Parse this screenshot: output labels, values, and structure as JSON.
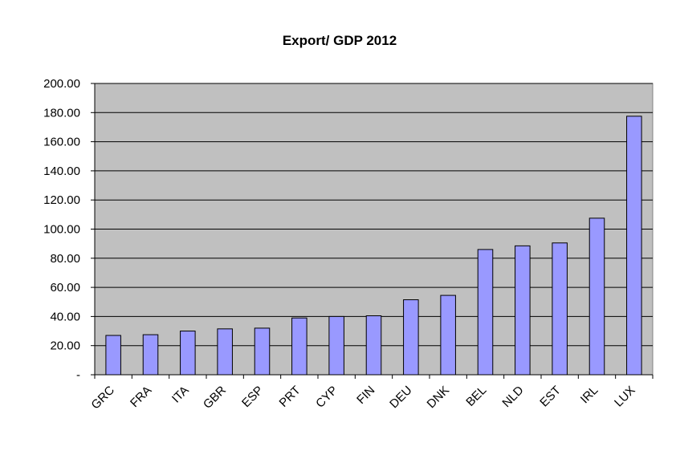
{
  "chart_data": {
    "type": "bar",
    "title": "Export/ GDP   2012",
    "xlabel": "",
    "ylabel": "",
    "categories": [
      "GRC",
      "FRA",
      "ITA",
      "GBR",
      "ESP",
      "PRT",
      "CYP",
      "FIN",
      "DEU",
      "DNK",
      "BEL",
      "NLD",
      "EST",
      "IRL",
      "LUX"
    ],
    "values": [
      27,
      27.5,
      30,
      31.5,
      32,
      39,
      40,
      40.5,
      51.5,
      54.5,
      86,
      88.5,
      90.5,
      107.5,
      177.5
    ],
    "ylim": [
      0,
      200
    ],
    "yticks": [
      "-",
      "20.00",
      "40.00",
      "60.00",
      "80.00",
      "100.00",
      "120.00",
      "140.00",
      "160.00",
      "180.00",
      "200.00"
    ],
    "grid": true,
    "legend": "none",
    "colors": {
      "plot_background": "#c0c0c0",
      "bar_fill": "#9999ff",
      "bar_stroke": "#000000",
      "gridline": "#000000"
    }
  }
}
